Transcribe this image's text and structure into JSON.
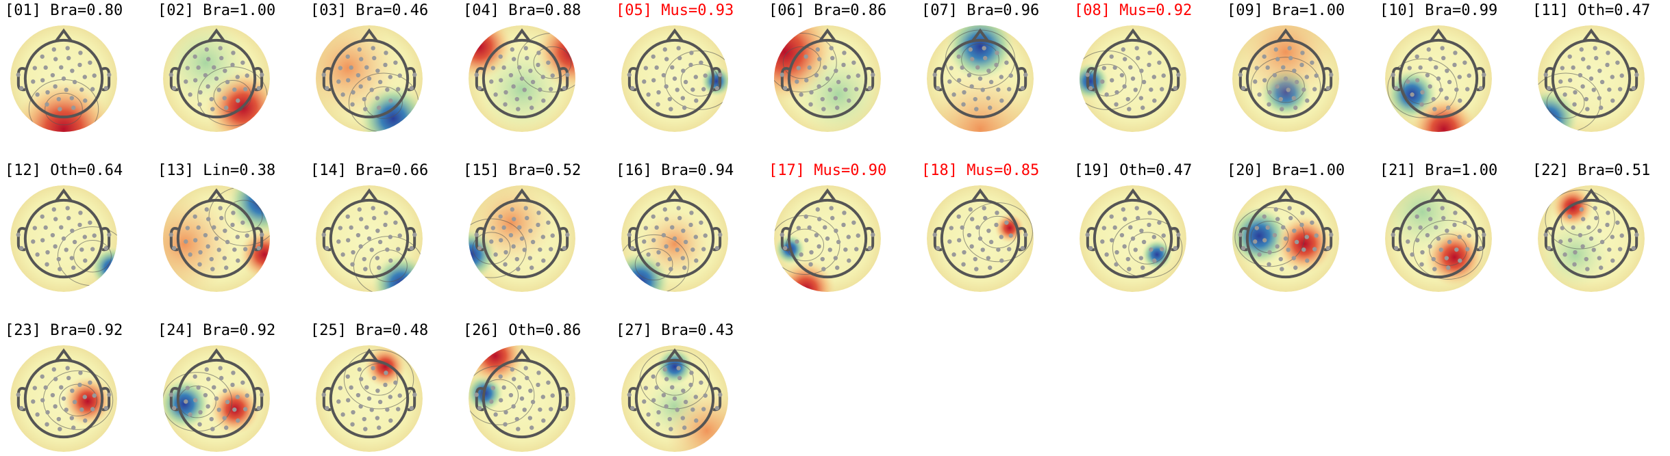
{
  "components": [
    {
      "label": "[01] Bra=0.80",
      "color": "#000000"
    },
    {
      "label": "[02] Bra=1.00",
      "color": "#000000"
    },
    {
      "label": "[03] Bra=0.46",
      "color": "#000000"
    },
    {
      "label": "[04] Bra=0.88",
      "color": "#000000"
    },
    {
      "label": "[05] Mus=0.93",
      "color": "#ff0000"
    },
    {
      "label": "[06] Bra=0.86",
      "color": "#000000"
    },
    {
      "label": "[07] Bra=0.96",
      "color": "#000000"
    },
    {
      "label": "[08] Mus=0.92",
      "color": "#ff0000"
    },
    {
      "label": "[09] Bra=1.00",
      "color": "#000000"
    },
    {
      "label": "[10] Bra=0.99",
      "color": "#000000"
    },
    {
      "label": "[11] Oth=0.47",
      "color": "#000000"
    },
    {
      "label": "[12] Oth=0.64",
      "color": "#000000"
    },
    {
      "label": "[13] Lin=0.38",
      "color": "#000000"
    },
    {
      "label": "[14] Bra=0.66",
      "color": "#000000"
    },
    {
      "label": "[15] Bra=0.52",
      "color": "#000000"
    },
    {
      "label": "[16] Bra=0.94",
      "color": "#000000"
    },
    {
      "label": "[17] Mus=0.90",
      "color": "#ff0000"
    },
    {
      "label": "[18] Mus=0.85",
      "color": "#ff0000"
    },
    {
      "label": "[19] Oth=0.47",
      "color": "#000000"
    },
    {
      "label": "[20] Bra=1.00",
      "color": "#000000"
    },
    {
      "label": "[21] Bra=1.00",
      "color": "#000000"
    },
    {
      "label": "[22] Bra=0.51",
      "color": "#000000"
    },
    {
      "label": "[23] Bra=0.92",
      "color": "#000000"
    },
    {
      "label": "[24] Bra=0.92",
      "color": "#000000"
    },
    {
      "label": "[25] Bra=0.48",
      "color": "#000000"
    },
    {
      "label": "[26] Oth=0.86",
      "color": "#000000"
    },
    {
      "label": "[27] Bra=0.43",
      "color": "#000000"
    }
  ]
}
